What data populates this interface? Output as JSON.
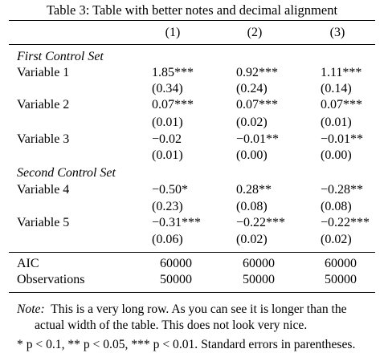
{
  "caption": "Table 3: Table with better notes and decimal alignment",
  "columns": [
    "(1)",
    "(2)",
    "(3)"
  ],
  "groups": [
    {
      "title": "First Control Set",
      "rows": [
        {
          "label": "Variable 1",
          "coef": [
            "1.85***",
            "0.92***",
            "1.11***"
          ],
          "se": [
            "(0.34)",
            "(0.24)",
            "(0.14)"
          ]
        },
        {
          "label": "Variable 2",
          "coef": [
            "0.07***",
            "0.07***",
            "0.07***"
          ],
          "se": [
            "(0.01)",
            "(0.02)",
            "(0.01)"
          ]
        },
        {
          "label": "Variable 3",
          "coef": [
            "−0.02",
            "−0.01**",
            "−0.01**"
          ],
          "se": [
            "(0.01)",
            "(0.00)",
            "(0.00)"
          ]
        }
      ]
    },
    {
      "title": "Second Control Set",
      "rows": [
        {
          "label": "Variable 4",
          "coef": [
            "−0.50*",
            "0.28**",
            "−0.28**"
          ],
          "se": [
            "(0.23)",
            "(0.08)",
            "(0.08)"
          ]
        },
        {
          "label": "Variable 5",
          "coef": [
            "−0.31***",
            "−0.22***",
            "−0.22***"
          ],
          "se": [
            "(0.06)",
            "(0.02)",
            "(0.02)"
          ]
        }
      ]
    }
  ],
  "stats": [
    {
      "label": "AIC",
      "values": [
        "60000",
        "60000",
        "60000"
      ]
    },
    {
      "label": "Observations",
      "values": [
        "50000",
        "50000",
        "50000"
      ]
    }
  ],
  "note": {
    "prefix": "Note:",
    "line1": "This is a very long row. As you can see it is longer than the",
    "line2": "actual width of the table. This does not look very nice."
  },
  "significance": "* p < 0.1, ** p < 0.05, *** p < 0.01. Standard errors in parentheses."
}
